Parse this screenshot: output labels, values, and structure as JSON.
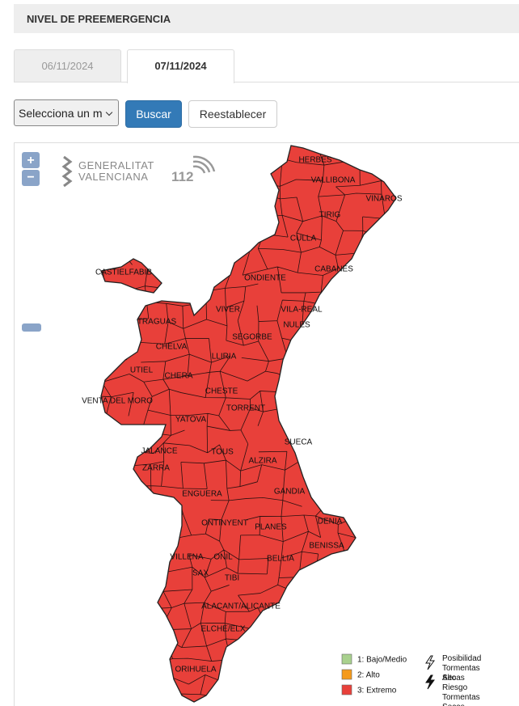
{
  "header": {
    "title": "NIVEL DE PREEMERGENCIA"
  },
  "tabs": [
    "06/11/2024",
    "07/11/2024"
  ],
  "controls": {
    "select": "Selecciona un m",
    "search": "Buscar",
    "reset": "Reestablecer"
  },
  "map": {
    "zoom_in": "+",
    "zoom_out": "−",
    "logo_line1": "GENERALITAT",
    "logo_line2": "VALENCIANA",
    "logo_112": "112",
    "places": [
      "HERBES",
      "VALLIBONA",
      "VINAROS",
      "TIRIG",
      "CULLA",
      "CABANES",
      "CASTIELFABIB",
      "ONDIENTE",
      "VIVER",
      "VILA-REAL",
      "TRAGUAS",
      "NULES",
      "SEGORBE",
      "CHELVA",
      "LLIRIA",
      "UTIEL",
      "CHERA",
      "CHESTE",
      "VENTA DEL MORO",
      "TORRENT",
      "YATOVA",
      "SUECA",
      "JALANCE",
      "TOUS",
      "ALZIRA",
      "ZARRA",
      "GANDIA",
      "ENGUERA",
      "ONTINYENT",
      "DENIA",
      "PLANES",
      "BENISSA",
      "VILLENA",
      "ONIL",
      "BELLIA",
      "SAX",
      "TIBI",
      "ALACANT/ALICANTE",
      "ELCHE/ELX",
      "ORIHUELA"
    ]
  },
  "legend": {
    "levels": [
      {
        "label": "1: Bajo/Medio",
        "color": "#a9d18e"
      },
      {
        "label": "2: Alto",
        "color": "#f59a1b"
      },
      {
        "label": "3: Extremo",
        "color": "#e8403a"
      }
    ],
    "storms": [
      "Posibilidad Tormentas Secas",
      "Alto Riesgo Tormentas Secas"
    ]
  }
}
